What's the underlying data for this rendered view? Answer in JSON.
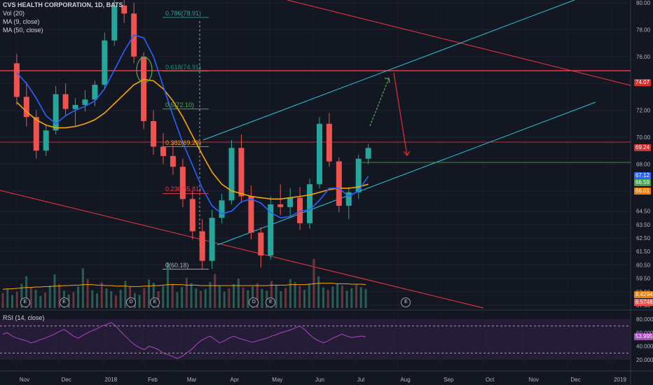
{
  "legend": {
    "title": "CVS HEALTH CORPORATION, 1D, BATS",
    "vol": "Vol (20)",
    "ma9": "MA (9, close)",
    "ma50": "MA (50, close)"
  },
  "rsi": {
    "label": "RSI (14, close)",
    "value_box": "53.9955",
    "ticks": [
      "80.0000",
      "60.0000",
      "40.0000",
      "20.0000"
    ],
    "values": [
      58,
      60,
      55,
      52,
      50,
      48,
      45,
      47,
      50,
      52,
      55,
      58,
      62,
      65,
      60,
      55,
      52,
      56,
      60,
      63,
      66,
      70,
      72,
      75,
      70,
      62,
      55,
      48,
      42,
      38,
      35,
      40,
      38,
      35,
      30,
      28,
      25,
      22,
      25,
      30,
      35,
      42,
      48,
      52,
      55,
      50,
      45,
      48,
      52,
      55,
      52,
      50,
      48,
      46,
      48,
      50,
      52,
      55,
      57,
      60,
      62,
      64,
      67,
      70,
      65,
      58,
      52,
      48,
      45,
      48,
      52,
      55,
      58,
      55,
      53,
      54,
      55,
      54
    ]
  },
  "volume": {
    "value_box_1": "8.4294M",
    "value_box_2": "6.5748M",
    "bars": [
      3.2,
      4.1,
      2.8,
      3.5,
      5.2,
      6.8,
      4.4,
      3.9,
      2.6,
      3.3,
      4.8,
      7.2,
      5.1,
      3.7,
      2.9,
      3.4,
      4.6,
      8.5,
      6.2,
      3.8,
      3.1,
      5.5,
      4.2,
      3.6,
      2.7,
      3.9,
      5.8,
      4.5,
      3.2,
      2.8,
      4.3,
      6.1,
      5.4,
      3.6,
      4.7,
      9.8,
      5.2,
      3.4,
      4.5,
      6.5,
      5.3,
      4.2,
      3.7,
      4.1,
      5.6,
      7.3,
      4.8,
      3.5,
      4.2,
      5.1,
      6.3,
      4.4,
      3.8,
      4.6,
      5.3,
      4.1,
      3.7,
      5.8,
      4.9,
      3.6,
      4.3,
      6.2,
      5.5,
      4.7,
      3.9,
      5.2,
      10.5,
      6.8,
      4.4,
      3.9,
      4.6,
      5.2,
      4.8,
      3.7,
      4.2,
      5.0,
      4.5,
      4.1
    ],
    "ma20": [
      4.0,
      4.1,
      4.1,
      4.2,
      4.3,
      4.4,
      4.4,
      4.5,
      4.5,
      4.6,
      4.6,
      4.7,
      4.7,
      4.8,
      4.8,
      4.9,
      4.9,
      5.0,
      5.0,
      5.0,
      4.9,
      4.9,
      4.8,
      4.8,
      4.7,
      4.7,
      4.7,
      4.6,
      4.6,
      4.6,
      4.7,
      4.7,
      4.8,
      4.8,
      4.9,
      5.0,
      5.0,
      5.0,
      5.0,
      4.9,
      4.9,
      4.9,
      4.8,
      4.8,
      4.8,
      4.8,
      4.8,
      4.8,
      4.8,
      4.8,
      4.8,
      4.8,
      4.8,
      4.8,
      4.8,
      4.8,
      4.8,
      4.9,
      4.9,
      4.9,
      4.9,
      5.0,
      5.0,
      5.0,
      5.0,
      5.1,
      5.2,
      5.3,
      5.3,
      5.3,
      5.3,
      5.2,
      5.2,
      5.2,
      5.1,
      5.1,
      5.1,
      5.0
    ]
  },
  "badges": [
    {
      "label": "E",
      "date": "2017-11-07"
    },
    {
      "label": "E",
      "date": "2017-12-05"
    },
    {
      "label": "D",
      "date": "2018-01-22"
    },
    {
      "label": "E",
      "date": "2018-02-08"
    },
    {
      "label": "D",
      "date": "2018-04-20"
    },
    {
      "label": "E",
      "date": "2018-05-02"
    },
    {
      "label": "E",
      "date": "2018-08-07"
    }
  ],
  "fib": [
    {
      "label": "0.786(78.91)",
      "price": 78.91,
      "color": "#26a69a"
    },
    {
      "label": "0.618(74.91)",
      "price": 74.91,
      "color": "#089981"
    },
    {
      "label": "0.5(72.10)",
      "price": 72.1,
      "color": "#4caf50"
    },
    {
      "label": "0.382(69.29)",
      "price": 69.29,
      "color": "#f7a600"
    },
    {
      "label": "0.236(65.81)",
      "price": 65.81,
      "color": "#f23645"
    },
    {
      "label": "0(60.18)",
      "price": 60.18,
      "color": "#b2b5be"
    }
  ],
  "price_boxes": [
    {
      "text": "74.07",
      "price": 74.07,
      "bg": "#d32f2f"
    },
    {
      "text": "69.24",
      "price": 69.24,
      "bg": "#d32f2f"
    },
    {
      "text": "67.12",
      "price": 67.12,
      "bg": "#2962ff"
    },
    {
      "text": "66.59",
      "price": 66.59,
      "bg": "#43a047"
    },
    {
      "text": "66.01",
      "price": 66.01,
      "bg": "#f57c00"
    }
  ],
  "chart_data": {
    "type": "candlestick",
    "title": "CVS HEALTH CORPORATION, 1D, BATS",
    "x_ticks": [
      "Nov",
      "Dec",
      "2018",
      "Feb",
      "Mar",
      "Apr",
      "May",
      "Jun",
      "Jul",
      "Aug",
      "Sep",
      "Oct",
      "Nov",
      "Dec",
      "2019"
    ],
    "y_ticks": [
      "80.00",
      "78.00",
      "76.00",
      "74.00",
      "72.00",
      "70.00",
      "68.00",
      "66.00",
      "64.50",
      "63.50",
      "62.50",
      "61.50",
      "60.50",
      "59.50",
      "58.50",
      "57.50"
    ],
    "ylim": [
      56.5,
      80.5
    ],
    "dates": [
      "2017-11-01",
      "2017-11-08",
      "2017-11-15",
      "2017-11-22",
      "2017-11-29",
      "2017-12-06",
      "2017-12-13",
      "2017-12-20",
      "2017-12-27",
      "2018-01-03",
      "2018-01-10",
      "2018-01-17",
      "2018-01-24",
      "2018-01-31",
      "2018-02-07",
      "2018-02-14",
      "2018-02-21",
      "2018-02-28",
      "2018-03-07",
      "2018-03-14",
      "2018-03-21",
      "2018-03-28",
      "2018-04-04",
      "2018-04-11",
      "2018-04-18",
      "2018-04-25",
      "2018-05-02",
      "2018-05-09",
      "2018-05-16",
      "2018-05-23",
      "2018-05-30",
      "2018-06-06",
      "2018-06-13",
      "2018-06-20",
      "2018-06-27",
      "2018-07-04",
      "2018-07-11"
    ],
    "ohlc": [
      [
        75.5,
        76.2,
        72.4,
        73.0
      ],
      [
        73.0,
        74.1,
        70.8,
        71.5
      ],
      [
        71.5,
        72.0,
        68.4,
        69.0
      ],
      [
        69.0,
        70.9,
        68.6,
        70.5
      ],
      [
        70.5,
        73.8,
        70.2,
        73.2
      ],
      [
        73.2,
        74.0,
        71.6,
        72.1
      ],
      [
        72.1,
        72.9,
        70.8,
        72.4
      ],
      [
        72.4,
        73.5,
        71.9,
        72.8
      ],
      [
        72.8,
        74.2,
        72.3,
        73.9
      ],
      [
        73.9,
        77.8,
        73.6,
        77.2
      ],
      [
        77.2,
        80.4,
        76.8,
        79.8
      ],
      [
        79.8,
        80.8,
        78.5,
        79.2
      ],
      [
        79.2,
        80.0,
        75.5,
        76.0
      ],
      [
        76.0,
        76.3,
        70.6,
        71.2
      ],
      [
        71.2,
        72.0,
        68.7,
        69.3
      ],
      [
        69.3,
        70.3,
        68.0,
        68.6
      ],
      [
        68.6,
        69.6,
        67.2,
        67.8
      ],
      [
        67.8,
        68.4,
        64.8,
        65.4
      ],
      [
        65.4,
        66.0,
        62.4,
        63.0
      ],
      [
        63.0,
        63.9,
        60.2,
        60.8
      ],
      [
        60.8,
        64.6,
        60.2,
        64.0
      ],
      [
        64.0,
        65.8,
        63.6,
        65.3
      ],
      [
        65.3,
        69.8,
        65.0,
        69.2
      ],
      [
        69.2,
        70.2,
        65.1,
        65.6
      ],
      [
        65.6,
        66.4,
        62.4,
        62.9
      ],
      [
        62.9,
        63.3,
        60.3,
        61.2
      ],
      [
        61.2,
        65.6,
        60.9,
        65.0
      ],
      [
        65.0,
        66.5,
        64.2,
        64.8
      ],
      [
        64.8,
        66.2,
        64.0,
        65.5
      ],
      [
        65.5,
        66.3,
        63.1,
        63.6
      ],
      [
        63.6,
        66.9,
        63.2,
        66.5
      ],
      [
        66.5,
        71.5,
        66.2,
        71.0
      ],
      [
        71.0,
        71.8,
        67.8,
        68.2
      ],
      [
        68.2,
        68.5,
        64.4,
        64.9
      ],
      [
        64.9,
        66.3,
        63.9,
        65.9
      ],
      [
        65.9,
        68.7,
        65.4,
        68.4
      ],
      [
        68.4,
        69.5,
        68.0,
        69.2
      ]
    ],
    "ma9": [
      74.8,
      74.0,
      72.9,
      71.6,
      71.0,
      71.6,
      72.0,
      72.3,
      72.7,
      73.6,
      75.0,
      76.4,
      77.6,
      77.4,
      76.0,
      73.8,
      71.6,
      69.6,
      67.9,
      66.2,
      64.9,
      64.3,
      64.5,
      65.2,
      65.4,
      65.1,
      64.4,
      64.0,
      64.1,
      64.5,
      64.6,
      65.3,
      66.2,
      66.2,
      65.6,
      66.0,
      67.1
    ],
    "ma50": [
      72.6,
      71.9,
      71.3,
      70.9,
      70.7,
      70.7,
      70.8,
      71.0,
      71.3,
      71.8,
      72.5,
      73.2,
      73.9,
      74.3,
      74.2,
      73.6,
      72.7,
      71.5,
      70.1,
      68.7,
      67.4,
      66.5,
      66.0,
      65.8,
      65.6,
      65.5,
      65.4,
      65.4,
      65.5,
      65.6,
      65.7,
      65.9,
      66.1,
      66.2,
      66.2,
      66.3,
      66.5
    ]
  }
}
